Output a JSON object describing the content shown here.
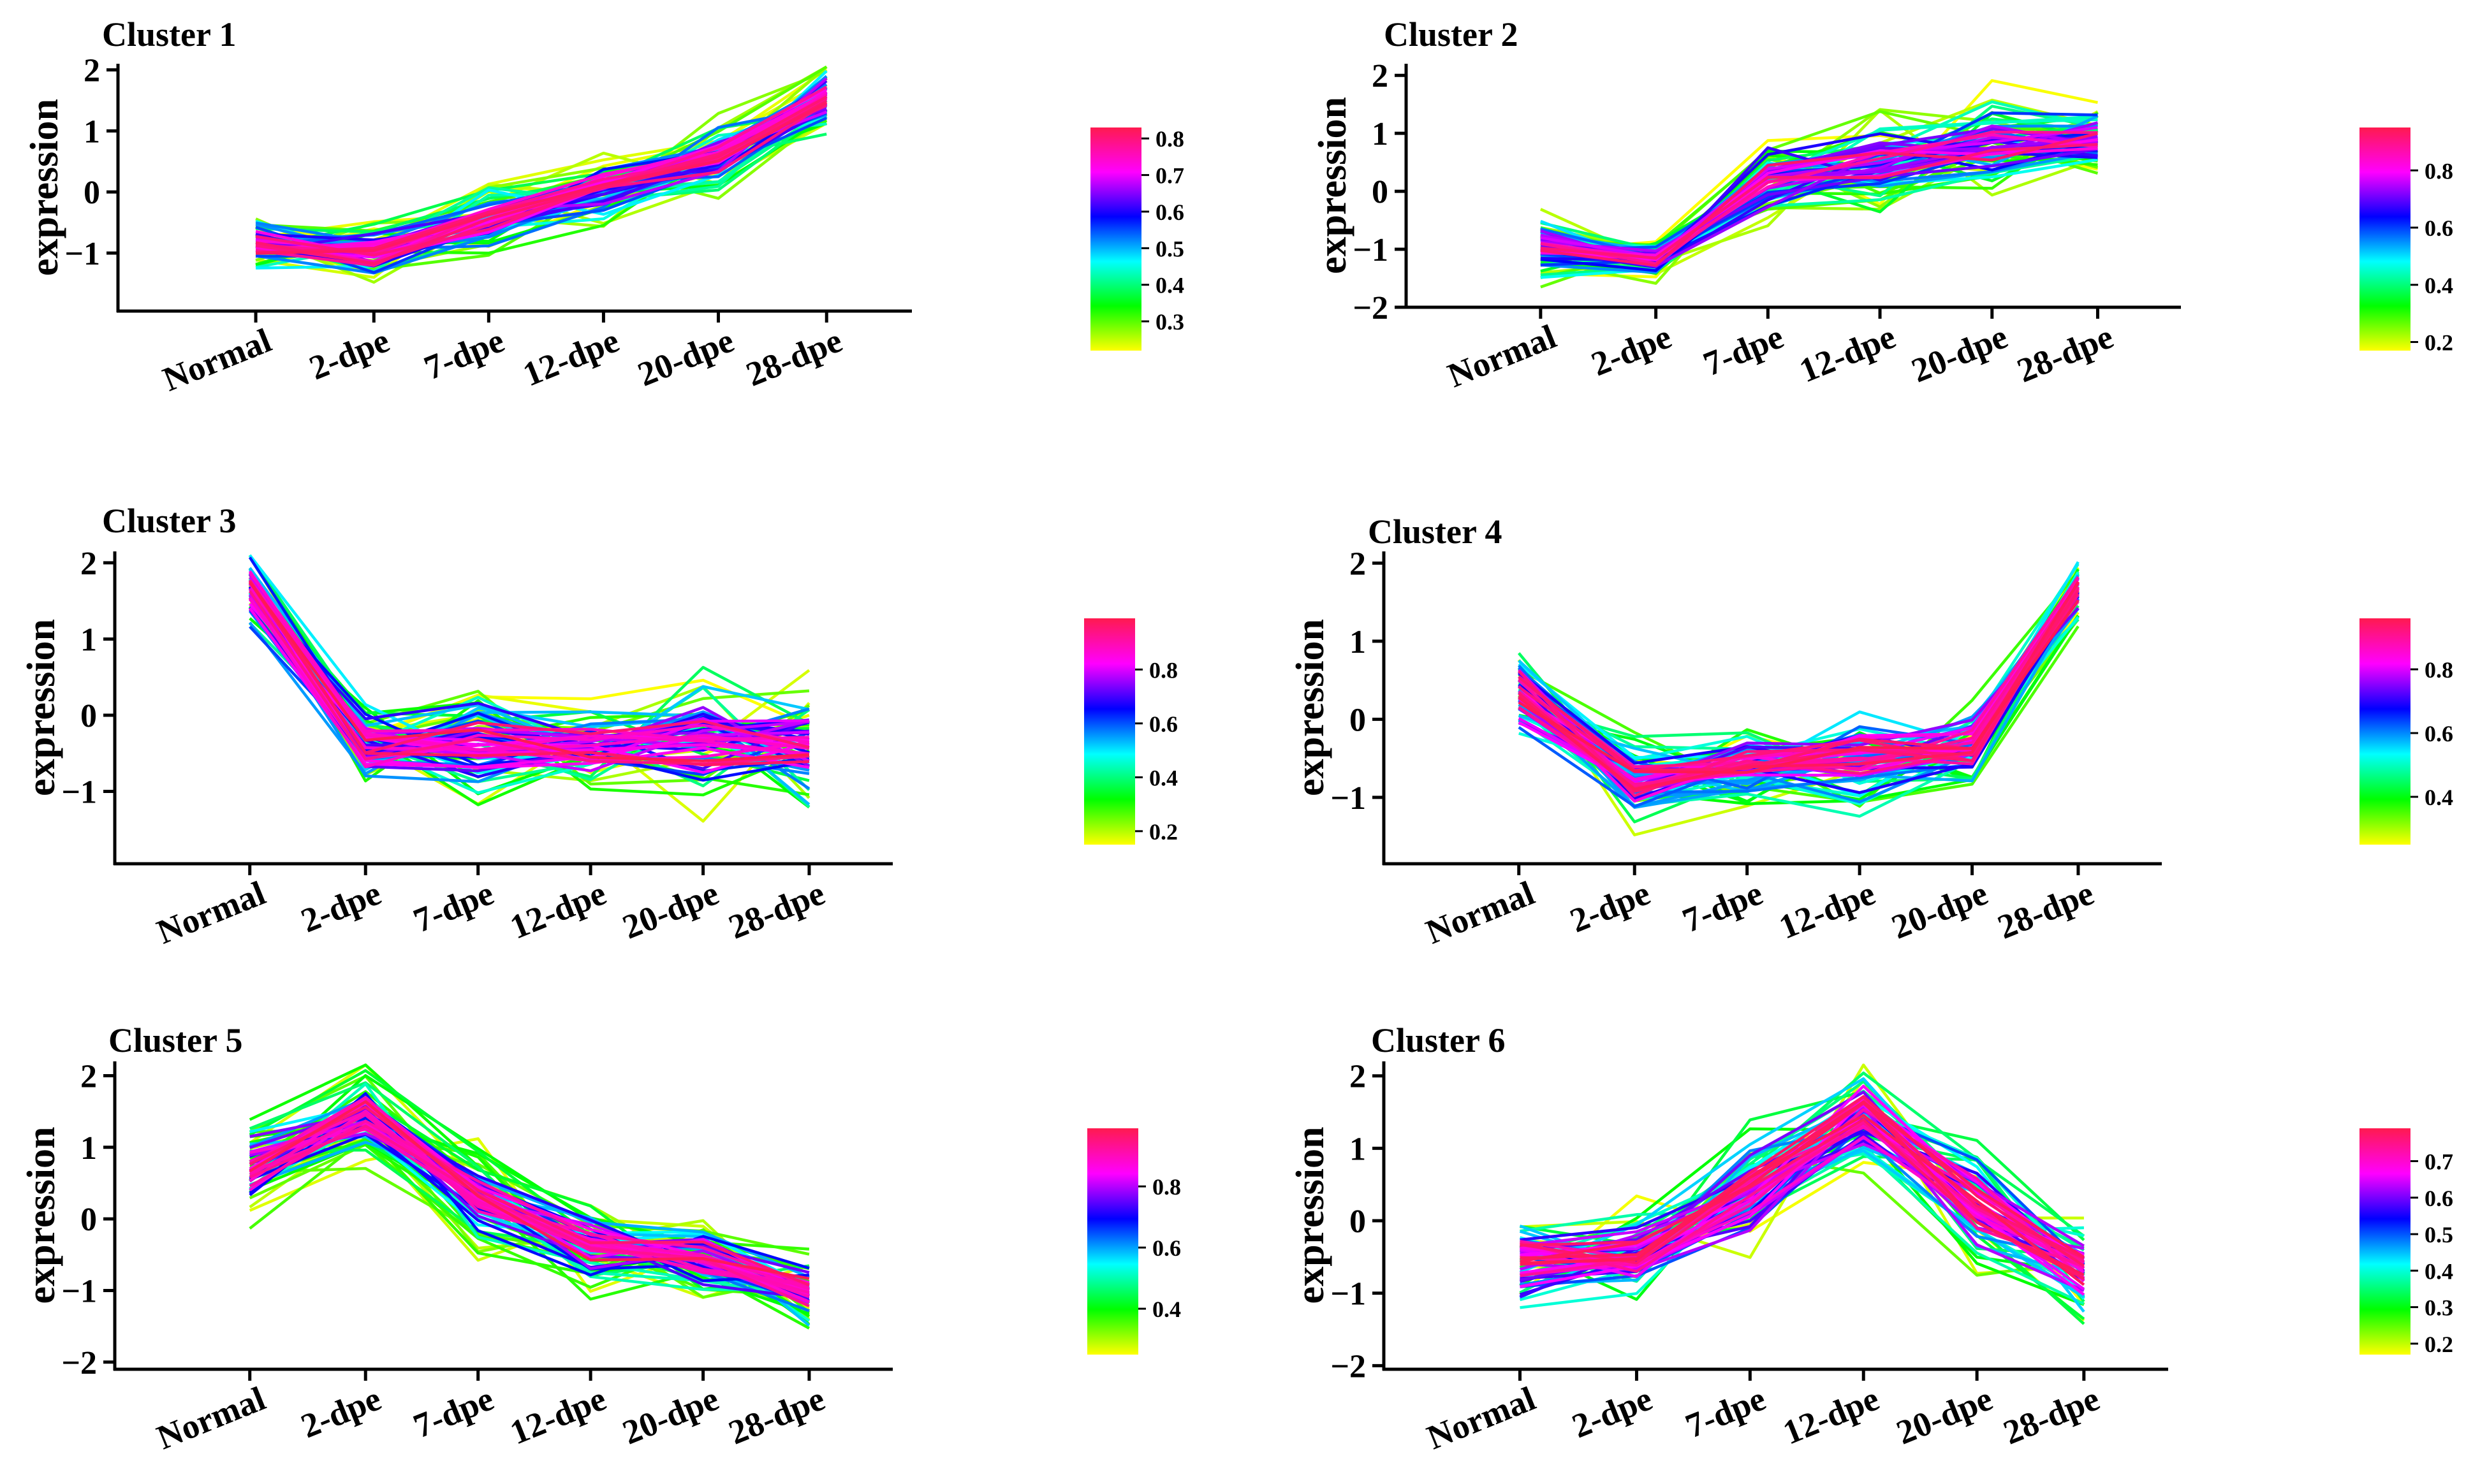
{
  "figure": {
    "x_categories": [
      "Normal",
      "2-dpe",
      "7-dpe",
      "12-dpe",
      "20-dpe",
      "28-dpe"
    ],
    "palette": [
      "#FFFF00",
      "#00FF00",
      "#00FFFF",
      "#0000FF",
      "#FF00FF",
      "#FF1A4F"
    ]
  },
  "chart_data": [
    {
      "type": "line",
      "title": "Cluster 1",
      "ylabel": "expression",
      "categories": [
        "Normal",
        "2-dpe",
        "7-dpe",
        "12-dpe",
        "20-dpe",
        "28-dpe"
      ],
      "ylim": [
        -1.95,
        2.1
      ],
      "yticks": [
        -1,
        0,
        1,
        2
      ],
      "centroid": [
        -0.85,
        -1.0,
        -0.45,
        0.05,
        0.55,
        1.55
      ],
      "spread": [
        0.28,
        0.32,
        0.32,
        0.32,
        0.42,
        0.35
      ],
      "n_lines": 70,
      "colorbar": {
        "range": [
          0.22,
          0.83
        ],
        "ticks": [
          0.3,
          0.4,
          0.5,
          0.6,
          0.7,
          0.8
        ]
      }
    },
    {
      "type": "line",
      "title": "Cluster 2",
      "ylabel": "expression",
      "categories": [
        "Normal",
        "2-dpe",
        "7-dpe",
        "12-dpe",
        "20-dpe",
        "28-dpe"
      ],
      "ylim": [
        -2.0,
        2.2
      ],
      "yticks": [
        -2,
        -1,
        0,
        1,
        2
      ],
      "centroid": [
        -0.95,
        -1.2,
        0.2,
        0.5,
        0.75,
        0.9
      ],
      "spread": [
        0.35,
        0.2,
        0.5,
        0.48,
        0.55,
        0.35
      ],
      "n_lines": 70,
      "colorbar": {
        "range": [
          0.17,
          0.95
        ],
        "ticks": [
          0.2,
          0.4,
          0.6,
          0.8
        ]
      }
    },
    {
      "type": "line",
      "title": "Cluster 3",
      "ylabel": "expression",
      "categories": [
        "Normal",
        "2-dpe",
        "7-dpe",
        "12-dpe",
        "20-dpe",
        "28-dpe"
      ],
      "ylim": [
        -1.95,
        2.15
      ],
      "yticks": [
        -1,
        0,
        1,
        2
      ],
      "centroid": [
        1.65,
        -0.4,
        -0.35,
        -0.4,
        -0.35,
        -0.45
      ],
      "spread": [
        0.38,
        0.38,
        0.5,
        0.35,
        0.55,
        0.5
      ],
      "n_lines": 70,
      "colorbar": {
        "range": [
          0.15,
          0.99
        ],
        "ticks": [
          0.2,
          0.4,
          0.6,
          0.8
        ]
      }
    },
    {
      "type": "line",
      "title": "Cluster 4",
      "ylabel": "expression",
      "categories": [
        "Normal",
        "2-dpe",
        "7-dpe",
        "12-dpe",
        "20-dpe",
        "28-dpe"
      ],
      "ylim": [
        -1.85,
        2.15
      ],
      "yticks": [
        -1,
        0,
        1,
        2
      ],
      "centroid": [
        0.35,
        -0.8,
        -0.6,
        -0.5,
        -0.35,
        1.65
      ],
      "spread": [
        0.45,
        0.35,
        0.35,
        0.48,
        0.35,
        0.32
      ],
      "n_lines": 70,
      "colorbar": {
        "range": [
          0.25,
          0.96
        ],
        "ticks": [
          0.4,
          0.6,
          0.8
        ]
      }
    },
    {
      "type": "line",
      "title": "Cluster 5",
      "ylabel": "expression",
      "categories": [
        "Normal",
        "2-dpe",
        "7-dpe",
        "12-dpe",
        "20-dpe",
        "28-dpe"
      ],
      "ylim": [
        -2.1,
        2.2
      ],
      "yticks": [
        -2,
        -1,
        0,
        1,
        2
      ],
      "centroid": [
        0.7,
        1.45,
        0.3,
        -0.35,
        -0.55,
        -1.0
      ],
      "spread": [
        0.5,
        0.42,
        0.45,
        0.4,
        0.38,
        0.35
      ],
      "n_lines": 70,
      "colorbar": {
        "range": [
          0.25,
          0.99
        ],
        "ticks": [
          0.4,
          0.6,
          0.8
        ]
      }
    },
    {
      "type": "line",
      "title": "Cluster 6",
      "ylabel": "expression",
      "categories": [
        "Normal",
        "2-dpe",
        "7-dpe",
        "12-dpe",
        "20-dpe",
        "28-dpe"
      ],
      "ylim": [
        -2.05,
        2.2
      ],
      "yticks": [
        -2,
        -1,
        0,
        1,
        2
      ],
      "centroid": [
        -0.55,
        -0.45,
        0.4,
        1.5,
        0.2,
        -0.7
      ],
      "spread": [
        0.48,
        0.42,
        0.55,
        0.48,
        0.55,
        0.42
      ],
      "n_lines": 70,
      "colorbar": {
        "range": [
          0.17,
          0.79
        ],
        "ticks": [
          0.2,
          0.3,
          0.4,
          0.5,
          0.6,
          0.7
        ]
      }
    }
  ]
}
